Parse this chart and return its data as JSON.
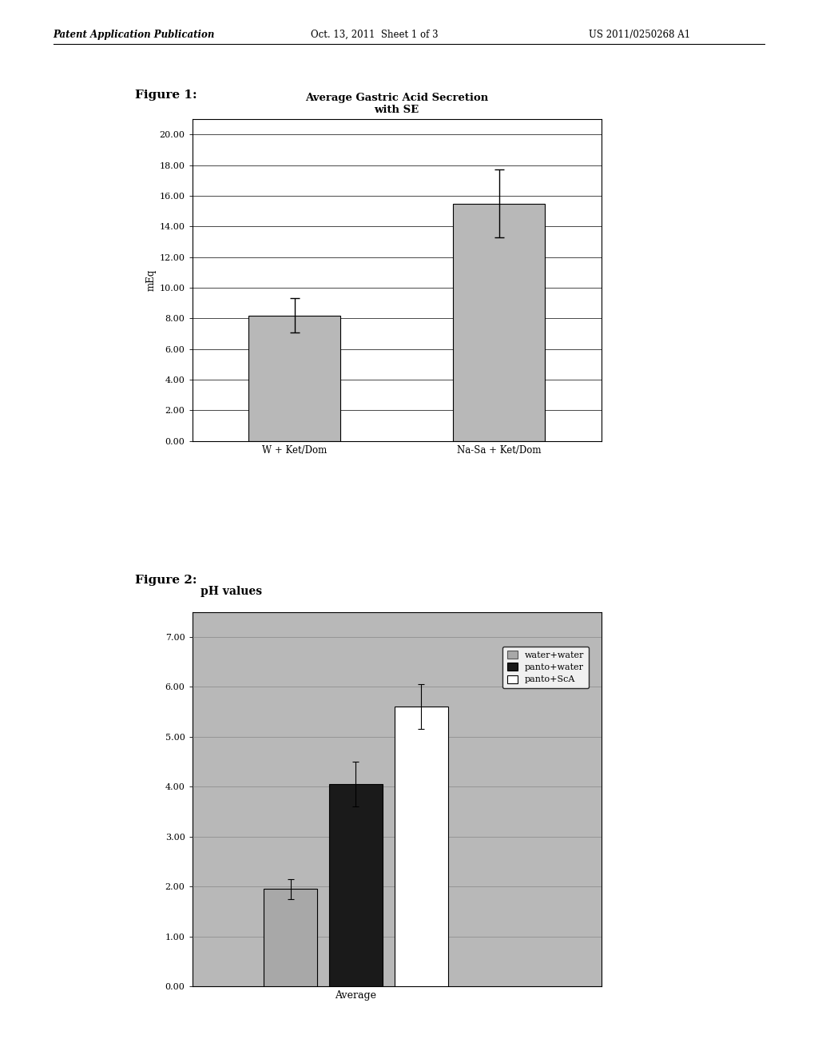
{
  "page_header_left": "Patent Application Publication",
  "page_header_center": "Oct. 13, 2011  Sheet 1 of 3",
  "page_header_right": "US 2011/0250268 A1",
  "fig1_label": "Figure 1:",
  "fig1_title": "Average Gastric Acid Secretion\nwith SE",
  "fig1_categories": [
    "W + Ket/Dom",
    "Na-Sa + Ket/Dom"
  ],
  "fig1_values": [
    8.2,
    15.5
  ],
  "fig1_errors": [
    1.1,
    2.2
  ],
  "fig1_ylabel": "mEq",
  "fig1_yticks": [
    0.0,
    2.0,
    4.0,
    6.0,
    8.0,
    10.0,
    12.0,
    14.0,
    16.0,
    18.0,
    20.0
  ],
  "fig1_ylim": [
    0,
    21
  ],
  "fig1_bar_color": "#b8b8b8",
  "fig1_bar_edgecolor": "#000000",
  "fig2_label": "Figure 2:",
  "fig2_title": "pH values",
  "fig2_categories": [
    "Average"
  ],
  "fig2_series": [
    "water+water",
    "panto+water",
    "panto+ScA"
  ],
  "fig2_values": [
    1.95,
    4.05,
    5.6
  ],
  "fig2_errors": [
    0.2,
    0.45,
    0.45
  ],
  "fig2_yticks": [
    0.0,
    1.0,
    2.0,
    3.0,
    4.0,
    5.0,
    6.0,
    7.0
  ],
  "fig2_ylim": [
    0,
    7.5
  ],
  "fig2_bar_colors": [
    "#a8a8a8",
    "#1a1a1a",
    "#ffffff"
  ],
  "fig2_bar_edgecolors": [
    "#000000",
    "#000000",
    "#000000"
  ],
  "fig2_legend_facecolors": [
    "#a8a8a8",
    "#1a1a1a",
    "#ffffff"
  ],
  "fig2_legend_edgecolors": [
    "#555555",
    "#000000",
    "#000000"
  ],
  "fig2_bg_color": "#b8b8b8"
}
